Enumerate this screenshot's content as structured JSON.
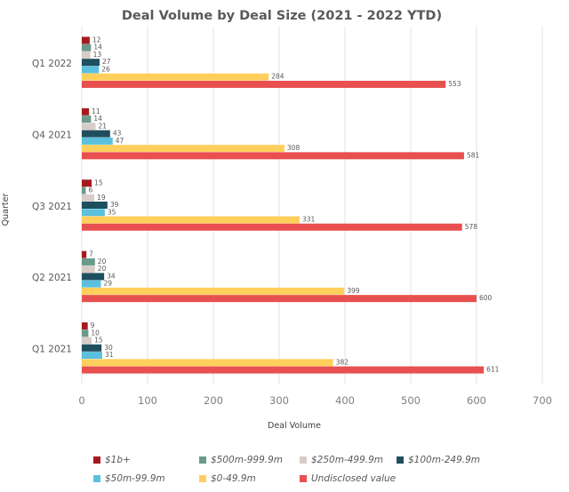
{
  "chart_data": {
    "type": "bar",
    "orientation": "horizontal",
    "title": "Deal Volume by Deal Size (2021 - 2022 YTD)",
    "xlabel": "Deal Volume",
    "ylabel": "Quarter",
    "xlim": [
      0,
      700
    ],
    "xticks": [
      "0",
      "100",
      "200",
      "300",
      "400",
      "500",
      "600",
      "700"
    ],
    "grid": "vertical",
    "legend_position": "bottom",
    "categories": [
      "Q1 2022",
      "Q4 2021",
      "Q3 2021",
      "Q2 2021",
      "Q1 2021"
    ],
    "series": [
      {
        "name": "$1b+",
        "color": "#A61A1E",
        "values": [
          12,
          11,
          15,
          7,
          9
        ]
      },
      {
        "name": "$500m-999.9m",
        "color": "#6B9A8A",
        "values": [
          14,
          14,
          6,
          20,
          10
        ]
      },
      {
        "name": "$250m-499.9m",
        "color": "#D7CCC8",
        "values": [
          13,
          21,
          19,
          20,
          15
        ]
      },
      {
        "name": "$100m-249.9m",
        "color": "#1F4E5F",
        "values": [
          27,
          43,
          39,
          34,
          30
        ]
      },
      {
        "name": "$50m-99.9m",
        "color": "#5BC0DE",
        "values": [
          26,
          47,
          35,
          29,
          31
        ]
      },
      {
        "name": "$0-49.9m",
        "color": "#FFCF5C",
        "values": [
          284,
          308,
          331,
          399,
          382
        ]
      },
      {
        "name": "Undisclosed value",
        "color": "#E8504F",
        "values": [
          553,
          581,
          578,
          600,
          611
        ]
      }
    ]
  }
}
